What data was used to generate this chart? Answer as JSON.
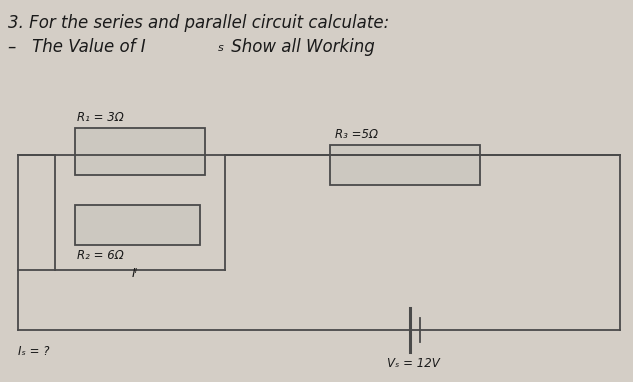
{
  "title_line1": "3. For the series and parallel circuit calculate:",
  "title_line2_prefix": "–   The Value of I",
  "title_line2_sub": "s",
  "title_line2_suffix": " Show all Working",
  "bg_color": "#d4cec6",
  "text_color": "#1a1a1a",
  "R1_label": "R₁ = 3Ω",
  "R2_label": "R₂ = 6Ω",
  "R3_label": "R₃ =5Ω",
  "Is_label": "Iₛ = ?",
  "Vs_label": "Vₛ = 12V",
  "lw": 1.3,
  "wire_color": "#4a4a4a",
  "res_facecolor": "#ccc8c0",
  "res_edgecolor": "#4a4a4a"
}
